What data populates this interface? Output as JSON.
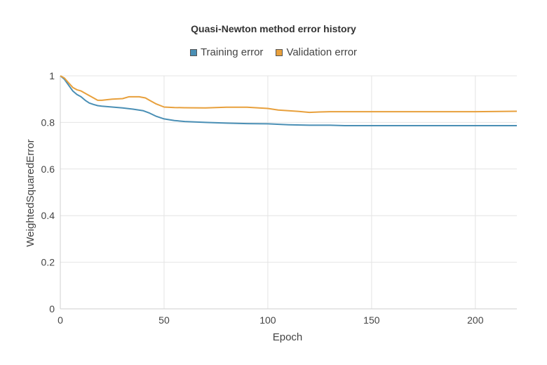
{
  "chart_data": {
    "type": "line",
    "title": "Quasi-Newton method error history",
    "xlabel": "Epoch",
    "ylabel": "WeightedSquaredError",
    "xlim": [
      0,
      220
    ],
    "ylim": [
      0,
      1
    ],
    "xticks": [
      0,
      50,
      100,
      150,
      200
    ],
    "yticks": [
      0,
      0.2,
      0.4,
      0.6,
      0.8,
      1
    ],
    "grid": true,
    "legend_position": "top-center",
    "series": [
      {
        "name": "Training error",
        "color": "#4a8fb5",
        "x": [
          0,
          2,
          4,
          6,
          8,
          10,
          12,
          14,
          16,
          18,
          20,
          25,
          30,
          35,
          40,
          43,
          46,
          50,
          55,
          60,
          70,
          80,
          90,
          100,
          110,
          120,
          130,
          137,
          150,
          175,
          200,
          220
        ],
        "values": [
          1.0,
          0.985,
          0.96,
          0.935,
          0.92,
          0.91,
          0.895,
          0.883,
          0.877,
          0.872,
          0.87,
          0.866,
          0.862,
          0.857,
          0.85,
          0.84,
          0.827,
          0.815,
          0.808,
          0.804,
          0.8,
          0.797,
          0.795,
          0.794,
          0.79,
          0.788,
          0.788,
          0.786,
          0.786,
          0.786,
          0.786,
          0.786
        ]
      },
      {
        "name": "Validation error",
        "color": "#e8a03c",
        "x": [
          0,
          2,
          4,
          6,
          8,
          10,
          13,
          16,
          18,
          20,
          23,
          25,
          30,
          33,
          36,
          38,
          41,
          43,
          46,
          50,
          55,
          60,
          70,
          80,
          90,
          100,
          105,
          110,
          115,
          120,
          125,
          130,
          150,
          175,
          200,
          220
        ],
        "values": [
          1.0,
          0.99,
          0.97,
          0.95,
          0.94,
          0.935,
          0.92,
          0.905,
          0.895,
          0.895,
          0.898,
          0.9,
          0.902,
          0.91,
          0.91,
          0.91,
          0.905,
          0.895,
          0.88,
          0.866,
          0.864,
          0.863,
          0.862,
          0.865,
          0.865,
          0.86,
          0.853,
          0.85,
          0.847,
          0.843,
          0.845,
          0.846,
          0.846,
          0.846,
          0.846,
          0.848
        ]
      }
    ]
  }
}
